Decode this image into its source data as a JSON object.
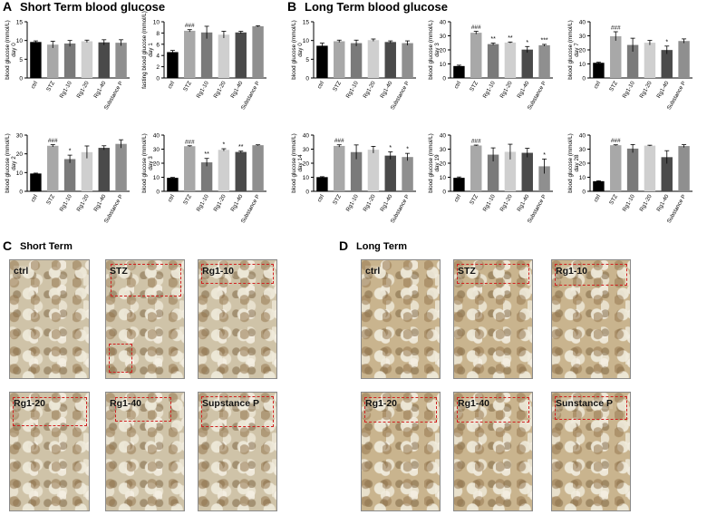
{
  "panels": {
    "A": {
      "letter": "A",
      "title": "Short Term blood glucose"
    },
    "B": {
      "letter": "B",
      "title": "Long Term blood glucose"
    },
    "C": {
      "letter": "C",
      "title": "Short Term"
    },
    "D": {
      "letter": "D",
      "title": "Long Term"
    }
  },
  "colors": {
    "ctrl": "#000000",
    "STZ": "#a8a8a8",
    "Rg1-10": "#7a7a7a",
    "Rg1-20": "#cfcfcf",
    "Rg1-40": "#4a4a4a",
    "Substance P": "#8f8f8f",
    "roi": "#d02020"
  },
  "chart_data": [
    {
      "type": "bar",
      "panel": "A",
      "ylabel": "blood glucose (mmol/L)",
      "sublabel": "day 0",
      "categories": [
        "ctrl",
        "STZ",
        "Rg1-10",
        "Rg1-20",
        "Rg1-40",
        "Substance P"
      ],
      "values": [
        9.6,
        8.9,
        9.2,
        9.8,
        9.5,
        9.4
      ],
      "errors": [
        0.3,
        0.9,
        0.8,
        0.3,
        0.7,
        0.8
      ],
      "annotations": [
        "",
        "",
        "",
        "",
        "",
        ""
      ],
      "ylim": [
        0,
        15
      ],
      "yticks": [
        0,
        5,
        10,
        15
      ]
    },
    {
      "type": "bar",
      "panel": "A",
      "ylabel": "fasting blood glucose (mmol/L)",
      "sublabel": "day 1",
      "categories": [
        "ctrl",
        "STZ",
        "Rg1-10",
        "Rg1-20",
        "Rg1-40",
        "Substance P"
      ],
      "values": [
        4.6,
        8.4,
        8.1,
        7.7,
        8.1,
        9.2
      ],
      "errors": [
        0.3,
        0.2,
        1.1,
        0.6,
        0.2,
        0.1
      ],
      "annotations": [
        "",
        "###",
        "",
        "",
        "",
        ""
      ],
      "ylim": [
        0,
        10
      ],
      "yticks": [
        0,
        2,
        4,
        6,
        8,
        10
      ]
    },
    {
      "type": "bar",
      "panel": "B",
      "ylabel": "blood glucose (mmol/L)",
      "sublabel": "day 0",
      "categories": [
        "ctrl",
        "STZ",
        "Rg1-10",
        "Rg1-20",
        "Rg1-40",
        "Substance P"
      ],
      "values": [
        8.6,
        9.8,
        9.3,
        10.1,
        9.6,
        9.3
      ],
      "errors": [
        0.7,
        0.3,
        0.8,
        0.3,
        0.3,
        0.6
      ],
      "annotations": [
        "",
        "",
        "",
        "",
        "",
        ""
      ],
      "ylim": [
        0,
        15
      ],
      "yticks": [
        0,
        5,
        10,
        15
      ]
    },
    {
      "type": "bar",
      "panel": "B",
      "ylabel": "blood glucose (mmol/L)",
      "sublabel": "day 3",
      "categories": [
        "ctrl",
        "STZ",
        "Rg1-10",
        "Rg1-20",
        "Rg1-40",
        "Substance P"
      ],
      "values": [
        8.5,
        32.2,
        24.1,
        25.2,
        20.2,
        23.3
      ],
      "errors": [
        0.6,
        1.0,
        0.7,
        0.4,
        2.2,
        0.6
      ],
      "annotations": [
        "",
        "###",
        "**",
        "**",
        "*",
        "***"
      ],
      "ylim": [
        0,
        40
      ],
      "yticks": [
        0,
        10,
        20,
        30,
        40
      ]
    },
    {
      "type": "bar",
      "panel": "B",
      "ylabel": "blood glucose (mmol/L)",
      "sublabel": "day 7",
      "categories": [
        "ctrl",
        "STZ",
        "Rg1-10",
        "Rg1-20",
        "Rg1-40",
        "Substance P"
      ],
      "values": [
        10.8,
        29.7,
        23.5,
        25.1,
        19.9,
        26.3
      ],
      "errors": [
        0.4,
        3.2,
        4.8,
        1.6,
        2.8,
        1.5
      ],
      "annotations": [
        "",
        "###",
        "",
        "",
        "*",
        ""
      ],
      "ylim": [
        0,
        40
      ],
      "yticks": [
        0,
        10,
        20,
        30,
        40
      ]
    },
    {
      "type": "bar",
      "panel": "A",
      "ylabel": "blood glucose (mmol/L)",
      "sublabel": "day 2",
      "categories": [
        "ctrl",
        "STZ",
        "Rg1-10",
        "Rg1-20",
        "Rg1-40",
        "Substance P"
      ],
      "values": [
        9.5,
        24.3,
        17.2,
        20.9,
        23.2,
        25.3
      ],
      "errors": [
        0.2,
        0.6,
        2.1,
        3.3,
        1.1,
        2.2
      ],
      "annotations": [
        "",
        "###",
        "*",
        "",
        "",
        ""
      ],
      "ylim": [
        0,
        30
      ],
      "yticks": [
        0,
        10,
        20,
        30
      ]
    },
    {
      "type": "bar",
      "panel": "A",
      "ylabel": "blood glucose (mmol/L)",
      "sublabel": "day 3",
      "categories": [
        "ctrl",
        "STZ",
        "Rg1-10",
        "Rg1-20",
        "Rg1-40",
        "Substance P"
      ],
      "values": [
        9.6,
        32.1,
        20.6,
        29.5,
        28.0,
        32.8
      ],
      "errors": [
        0.3,
        0.3,
        2.8,
        0.8,
        0.6,
        0.3
      ],
      "annotations": [
        "",
        "###",
        "**",
        "*",
        "**",
        ""
      ],
      "ylim": [
        0,
        40
      ],
      "yticks": [
        0,
        10,
        20,
        30,
        40
      ]
    },
    {
      "type": "bar",
      "panel": "B",
      "ylabel": "blood glucose (mmol/L)",
      "sublabel": "day 14",
      "categories": [
        "ctrl",
        "STZ",
        "Rg1-10",
        "Rg1-20",
        "Rg1-40",
        "Substance P"
      ],
      "values": [
        10.1,
        32.3,
        27.9,
        29.6,
        25.4,
        24.4
      ],
      "errors": [
        0.3,
        0.8,
        5.1,
        2.4,
        2.7,
        2.6
      ],
      "annotations": [
        "",
        "###",
        "",
        "",
        "*",
        "*"
      ],
      "ylim": [
        0,
        40
      ],
      "yticks": [
        0,
        10,
        20,
        30,
        40
      ]
    },
    {
      "type": "bar",
      "panel": "B",
      "ylabel": "blood glucose (mmol/L)",
      "sublabel": "day 19",
      "categories": [
        "ctrl",
        "STZ",
        "Rg1-10",
        "Rg1-20",
        "Rg1-40",
        "Substance P"
      ],
      "values": [
        9.6,
        32.6,
        26.1,
        28.1,
        27.4,
        17.8
      ],
      "errors": [
        0.6,
        0.3,
        4.8,
        5.4,
        3.2,
        5.2
      ],
      "annotations": [
        "",
        "###",
        "",
        "",
        "",
        "*"
      ],
      "ylim": [
        0,
        40
      ],
      "yticks": [
        0,
        10,
        20,
        30,
        40
      ]
    },
    {
      "type": "bar",
      "panel": "B",
      "ylabel": "blood glucose (mmol/L)",
      "sublabel": "day 28",
      "categories": [
        "ctrl",
        "STZ",
        "Rg1-10",
        "Rg1-20",
        "Rg1-40",
        "Substance P"
      ],
      "values": [
        7.2,
        32.8,
        30.4,
        32.5,
        24.3,
        32.2
      ],
      "errors": [
        0.3,
        0.3,
        2.9,
        0.3,
        4.6,
        1.0
      ],
      "annotations": [
        "",
        "###",
        "",
        "",
        "",
        ""
      ],
      "ylim": [
        0,
        40
      ],
      "yticks": [
        0,
        10,
        20,
        30,
        40
      ]
    }
  ],
  "photos": {
    "short": [
      {
        "label": "ctrl"
      },
      {
        "label": "STZ"
      },
      {
        "label": "Rg1-10"
      },
      {
        "label": "Rg1-20"
      },
      {
        "label": "Rg1-40"
      },
      {
        "label": "Supstance P"
      }
    ],
    "long": [
      {
        "label": "ctrl"
      },
      {
        "label": "STZ"
      },
      {
        "label": "Rg1-10"
      },
      {
        "label": "Rg1-20"
      },
      {
        "label": "Rg1-40"
      },
      {
        "label": "Sunstance P"
      }
    ]
  }
}
